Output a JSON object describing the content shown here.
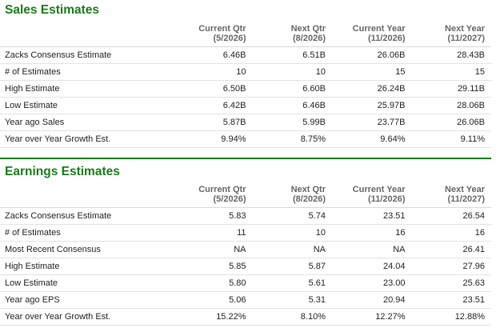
{
  "sales": {
    "title": "Sales Estimates",
    "columns": [
      {
        "label": "Current Qtr",
        "period": "(5/2026)"
      },
      {
        "label": "Next Qtr",
        "period": "(8/2026)"
      },
      {
        "label": "Current Year",
        "period": "(11/2026)"
      },
      {
        "label": "Next Year",
        "period": "(11/2027)"
      }
    ],
    "rows": [
      {
        "label": "Zacks Consensus Estimate",
        "values": [
          "6.46B",
          "6.51B",
          "26.06B",
          "28.43B"
        ]
      },
      {
        "label": "# of Estimates",
        "values": [
          "10",
          "10",
          "15",
          "15"
        ]
      },
      {
        "label": "High Estimate",
        "values": [
          "6.50B",
          "6.60B",
          "26.24B",
          "29.11B"
        ]
      },
      {
        "label": "Low Estimate",
        "values": [
          "6.42B",
          "6.46B",
          "25.97B",
          "28.06B"
        ]
      },
      {
        "label": "Year ago Sales",
        "values": [
          "5.87B",
          "5.99B",
          "23.77B",
          "26.06B"
        ]
      },
      {
        "label": "Year over Year Growth Est.",
        "values": [
          "9.94%",
          "8.75%",
          "9.64%",
          "9.11%"
        ]
      }
    ]
  },
  "earnings": {
    "title": "Earnings Estimates",
    "columns": [
      {
        "label": "Current Qtr",
        "period": "(5/2026)"
      },
      {
        "label": "Next Qtr",
        "period": "(8/2026)"
      },
      {
        "label": "Current Year",
        "period": "(11/2026)"
      },
      {
        "label": "Next Year",
        "period": "(11/2027)"
      }
    ],
    "rows": [
      {
        "label": "Zacks Consensus Estimate",
        "values": [
          "5.83",
          "5.74",
          "23.51",
          "26.54"
        ]
      },
      {
        "label": "# of Estimates",
        "values": [
          "11",
          "10",
          "16",
          "16"
        ]
      },
      {
        "label": "Most Recent Consensus",
        "values": [
          "NA",
          "NA",
          "NA",
          "26.41"
        ]
      },
      {
        "label": "High Estimate",
        "values": [
          "5.85",
          "5.87",
          "24.04",
          "27.96"
        ]
      },
      {
        "label": "Low Estimate",
        "values": [
          "5.80",
          "5.61",
          "23.00",
          "25.63"
        ]
      },
      {
        "label": "Year ago EPS",
        "values": [
          "5.06",
          "5.31",
          "20.94",
          "23.51"
        ]
      },
      {
        "label": "Year over Year Growth Est.",
        "values": [
          "15.22%",
          "8.10%",
          "12.27%",
          "12.88%"
        ]
      }
    ]
  },
  "colors": {
    "heading_green": "#1a7a1a",
    "header_text": "#666666",
    "row_divider": "#e3e3e3"
  }
}
